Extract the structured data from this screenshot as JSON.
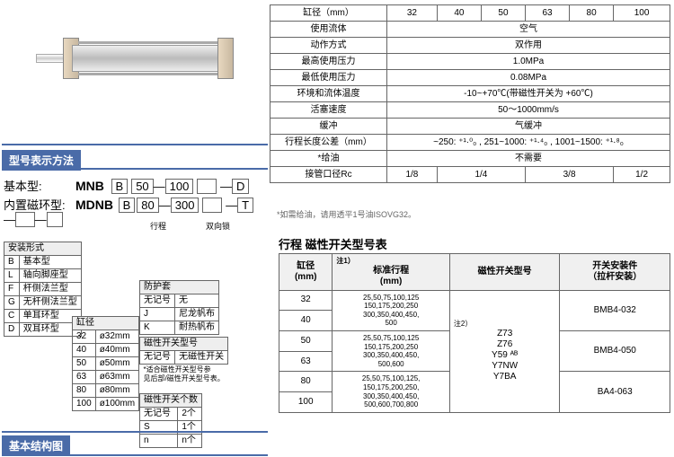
{
  "cyl_img": {
    "body_color": "#ccc",
    "cap_color": "#d8c8b0"
  },
  "model": {
    "title": "型号表示方法",
    "basic_label": "基本型:",
    "basic_code": "MNB",
    "mag_label": "内置磁环型:",
    "mag_code": "MDNB",
    "b1": "B",
    "b2": "B",
    "n50": "50",
    "n80": "80",
    "n100": "100",
    "n300": "300",
    "d": "D",
    "t": "T",
    "stroke_lbl": "行程",
    "lock_lbl": "双向锁"
  },
  "mount": {
    "title": "安装形式",
    "rows": [
      [
        "B",
        "基本型"
      ],
      [
        "L",
        "轴向脚座型"
      ],
      [
        "F",
        "杆侧法兰型"
      ],
      [
        "G",
        "无杆侧法兰型"
      ],
      [
        "C",
        "单耳环型"
      ],
      [
        "D",
        "双耳环型"
      ]
    ]
  },
  "bore": {
    "title": "缸径",
    "rows": [
      [
        "32",
        "ø32mm"
      ],
      [
        "40",
        "ø40mm"
      ],
      [
        "50",
        "ø50mm"
      ],
      [
        "63",
        "ø63mm"
      ],
      [
        "80",
        "ø80mm"
      ],
      [
        "100",
        "ø100mm"
      ]
    ]
  },
  "boot": {
    "title": "防护套",
    "rows": [
      [
        "无记号",
        "无"
      ],
      [
        "J",
        "尼龙帆布"
      ],
      [
        "K",
        "耐热帆布"
      ]
    ]
  },
  "mag": {
    "title": "磁性开关型号",
    "rows": [
      [
        "无记号",
        "无磁性开关"
      ]
    ],
    "note1": "*适合磁性开关型号参",
    "note2": "见后部/磁性开关型号表。"
  },
  "cnt": {
    "title": "磁性开关个数",
    "rows": [
      [
        "无记号",
        "2个"
      ],
      [
        "S",
        "1个"
      ],
      [
        "n",
        "n个"
      ]
    ]
  },
  "struct_title": "基本结构图",
  "spec": {
    "rows": [
      {
        "l": "缸径（mm）",
        "v": [
          "32",
          "40",
          "50",
          "63",
          "80",
          "100"
        ]
      },
      {
        "l": "使用流体",
        "v": "空气"
      },
      {
        "l": "动作方式",
        "v": "双作用"
      },
      {
        "l": "最高使用压力",
        "v": "1.0MPa"
      },
      {
        "l": "最低使用压力",
        "v": "0.08MPa"
      },
      {
        "l": "环境和流体温度",
        "v": "-10~+70℃(带磁性开关为 +60℃)"
      },
      {
        "l": "活塞速度",
        "v": "50～1000mm/s"
      },
      {
        "l": "缓冲",
        "v": "气缓冲"
      },
      {
        "l": "行程长度公差（mm）",
        "v": "~250: ⁺¹·⁰₀ , 251~1000: ⁺¹·⁴₀ , 1001~1500: ⁺¹·⁸₀"
      },
      {
        "l": "*给油",
        "v": "不需要"
      },
      {
        "l": "接管口径Rc",
        "v": [
          "1/8",
          "1/4",
          "3/8",
          "1/2"
        ],
        "span": [
          1,
          2,
          2,
          1
        ]
      }
    ],
    "note": "*如需给油，请用透平1号油ISOVG32。"
  },
  "stroke": {
    "title": "行程  磁性开关型号表",
    "h": [
      "缸径\n(mm)",
      "标准行程\n(mm)",
      "磁性开关型号",
      "开关安装件\n（拉杆安装）"
    ],
    "note1": "注1）",
    "note2": "注2）",
    "rows": [
      {
        "b": "32",
        "s": "25,50,75,100,125\n150,175,200,250\n300,350,400,450,\n500",
        "m": "Z73\nZ76\nY59 ᴬᴮ\nY7NW\nY7BA",
        "k": "BMB4-032",
        "srow": 2,
        "mrow": 6
      },
      {
        "b": "40"
      },
      {
        "b": "50",
        "s": "25,50,75,100,125\n150,175,200,250\n300,350,400,450,\n500,600",
        "k": "BMB4-050",
        "srow": 2
      },
      {
        "b": "63"
      },
      {
        "b": "80",
        "s": "25,50,75,100,125,\n150,175,200,250,\n300,350,400,450,\n500,600,700,800",
        "k": "BA4-063",
        "srow": 2
      },
      {
        "b": "100"
      }
    ]
  }
}
